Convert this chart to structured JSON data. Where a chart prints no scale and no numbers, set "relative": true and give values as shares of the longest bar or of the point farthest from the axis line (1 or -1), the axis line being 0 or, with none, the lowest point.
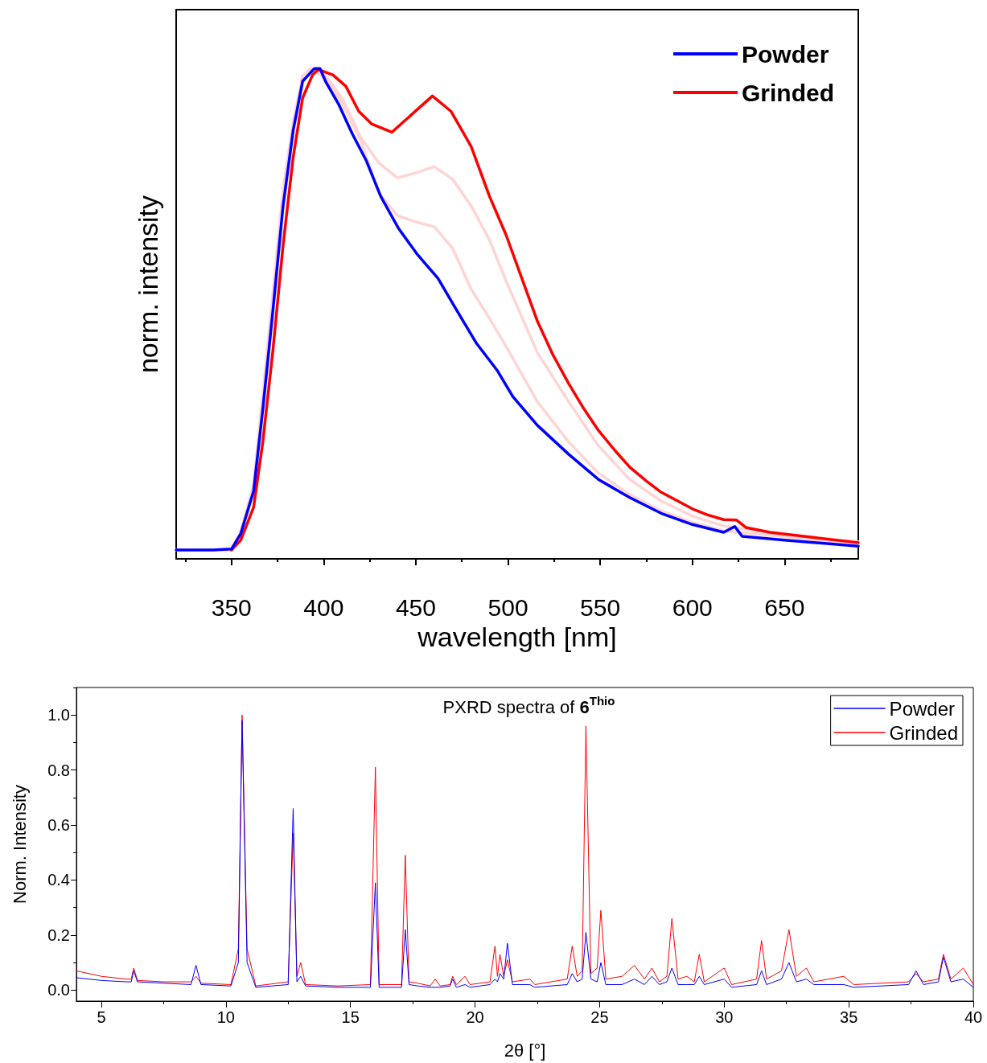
{
  "chart_data": [
    {
      "type": "line",
      "xlabel": "wavelength [nm]",
      "ylabel": "norm. intensity",
      "relative": true,
      "tick_labels": "x",
      "legend": "top right",
      "marker": "none",
      "line_style": "solid",
      "xlim": [
        320,
        690
      ],
      "xticks": [
        350,
        400,
        450,
        500,
        550,
        600,
        650
      ],
      "series": [
        {
          "name": "Powder",
          "color": "#0000ff",
          "x": [
            320,
            340,
            350,
            355,
            362,
            367,
            372.5,
            378,
            383.5,
            388.6,
            395,
            398,
            401,
            408,
            415.5,
            423,
            431,
            440.6,
            451,
            462,
            472.5,
            483,
            494,
            502.6,
            516,
            533,
            549,
            566,
            583,
            600,
            617,
            623,
            627,
            650,
            690
          ],
          "values": [
            0.018,
            0.018,
            0.02,
            0.051,
            0.138,
            0.305,
            0.507,
            0.72,
            0.874,
            0.974,
            1.0,
            1.0,
            0.974,
            0.928,
            0.867,
            0.813,
            0.739,
            0.674,
            0.62,
            0.572,
            0.505,
            0.439,
            0.385,
            0.331,
            0.272,
            0.213,
            0.162,
            0.125,
            0.093,
            0.07,
            0.054,
            0.066,
            0.046,
            0.038,
            0.026
          ]
        },
        {
          "name": "Grinded",
          "color": "#ff0000",
          "x": [
            350,
            355,
            362,
            367,
            372.5,
            378,
            383.5,
            388.6,
            394,
            397,
            405,
            412,
            419,
            426,
            437,
            448,
            459,
            469,
            480,
            490,
            499,
            507.5,
            516,
            524.5,
            533,
            541,
            549,
            558,
            566,
            575,
            583,
            592,
            600,
            608,
            617,
            624,
            629,
            642,
            667,
            690
          ],
          "values": [
            0.018,
            0.038,
            0.105,
            0.238,
            0.426,
            0.64,
            0.82,
            0.94,
            0.987,
            0.998,
            0.987,
            0.964,
            0.913,
            0.887,
            0.87,
            0.907,
            0.944,
            0.913,
            0.841,
            0.739,
            0.66,
            0.572,
            0.484,
            0.415,
            0.357,
            0.307,
            0.262,
            0.221,
            0.187,
            0.159,
            0.136,
            0.118,
            0.102,
            0.09,
            0.08,
            0.079,
            0.064,
            0.054,
            0.043,
            0.033
          ]
        },
        {
          "color": "#ffd4d4",
          "x": [
            320,
            350,
            355,
            362,
            367,
            372.5,
            378,
            383.5,
            388.6,
            393,
            401,
            410,
            420,
            430,
            440,
            450,
            460,
            470,
            480,
            490,
            499,
            516,
            533,
            549,
            566,
            583,
            600,
            617,
            650,
            690
          ],
          "values": [
            0.018,
            0.018,
            0.055,
            0.15,
            0.33,
            0.54,
            0.75,
            0.89,
            0.985,
            1.0,
            0.985,
            0.94,
            0.86,
            0.807,
            0.777,
            0.787,
            0.8,
            0.774,
            0.72,
            0.65,
            0.566,
            0.42,
            0.32,
            0.231,
            0.162,
            0.118,
            0.087,
            0.067,
            0.049,
            0.035
          ]
        },
        {
          "color": "#ffd4d4",
          "x": [
            320,
            350,
            355,
            362,
            367,
            372.5,
            378,
            383.5,
            388.6,
            393,
            401,
            410,
            420,
            430,
            440,
            450,
            460,
            470,
            480,
            490,
            499,
            516,
            533,
            549,
            566,
            583,
            600,
            617,
            650,
            690
          ],
          "values": [
            0.018,
            0.018,
            0.055,
            0.15,
            0.33,
            0.54,
            0.75,
            0.89,
            0.985,
            1.0,
            0.98,
            0.93,
            0.854,
            0.746,
            0.7,
            0.687,
            0.677,
            0.633,
            0.55,
            0.49,
            0.433,
            0.32,
            0.238,
            0.175,
            0.131,
            0.098,
            0.074,
            0.057,
            0.045,
            0.03
          ]
        }
      ]
    },
    {
      "type": "line",
      "title": "PXRD spectra of 6$^{Thio}$",
      "xlabel": "2θ [°]",
      "ylabel": "Norm. Intensity",
      "legend": "top right",
      "marker": "none",
      "line_style": "solid",
      "xlim": [
        4,
        40
      ],
      "xticks": [
        5,
        10,
        15,
        20,
        25,
        30,
        35,
        40
      ],
      "ylim": [
        -0.04,
        1.1
      ],
      "yticks": [
        {
          "value": 0,
          "label": "0.0"
        },
        {
          "value": 0.2,
          "label": "0.2"
        },
        {
          "value": 0.4,
          "label": "0.4"
        },
        {
          "value": 0.6,
          "label": "0.6"
        },
        {
          "value": 0.8,
          "label": "0.8"
        },
        {
          "value": 1,
          "label": "1.0"
        }
      ],
      "x": [
        4,
        5,
        6,
        6.2,
        6.3,
        6.45,
        7.5,
        8.6,
        8.8,
        9.0,
        10.2,
        10.5,
        10.65,
        10.85,
        11.2,
        12.5,
        12.7,
        12.85,
        13.0,
        13.2,
        14.5,
        15.8,
        16.0,
        16.15,
        17.05,
        17.2,
        17.35,
        17.7,
        18.2,
        18.4,
        18.6,
        19.0,
        19.1,
        19.25,
        19.6,
        19.8,
        20.6,
        20.8,
        20.9,
        21.0,
        21.15,
        21.3,
        21.5,
        22.2,
        22.4,
        23.7,
        23.9,
        24.1,
        24.3,
        24.45,
        24.65,
        24.9,
        25.05,
        25.25,
        25.9,
        26.4,
        26.8,
        27.1,
        27.4,
        27.7,
        27.9,
        28.15,
        28.5,
        28.8,
        29.0,
        29.2,
        30.0,
        30.3,
        31.3,
        31.5,
        31.7,
        32.3,
        32.6,
        32.9,
        33.3,
        33.6,
        34.8,
        35.2,
        37.4,
        37.7,
        38.0,
        38.6,
        38.8,
        39.1,
        39.6,
        40
      ],
      "series": [
        {
          "name": "Powder",
          "color": "#0000ff",
          "values": [
            0.045,
            0.035,
            0.03,
            0.03,
            0.07,
            0.03,
            0.025,
            0.02,
            0.09,
            0.02,
            0.015,
            0.1,
            0.98,
            0.1,
            0.01,
            0.02,
            0.66,
            0.03,
            0.05,
            0.015,
            0.01,
            0.01,
            0.39,
            0.01,
            0.01,
            0.22,
            0.02,
            0.015,
            0.01,
            0.01,
            0.01,
            0.015,
            0.04,
            0.01,
            0.02,
            0.01,
            0.02,
            0.04,
            0.03,
            0.06,
            0.04,
            0.17,
            0.02,
            0.02,
            0.01,
            0.02,
            0.06,
            0.03,
            0.04,
            0.21,
            0.04,
            0.03,
            0.1,
            0.02,
            0.02,
            0.04,
            0.02,
            0.05,
            0.02,
            0.03,
            0.08,
            0.02,
            0.02,
            0.02,
            0.05,
            0.02,
            0.04,
            0.01,
            0.02,
            0.07,
            0.02,
            0.04,
            0.1,
            0.03,
            0.04,
            0.02,
            0.02,
            0.01,
            0.02,
            0.07,
            0.02,
            0.03,
            0.12,
            0.03,
            0.04,
            0.01
          ]
        },
        {
          "name": "Grinded",
          "color": "#ff0000",
          "values": [
            0.07,
            0.05,
            0.04,
            0.04,
            0.08,
            0.035,
            0.03,
            0.03,
            0.05,
            0.025,
            0.02,
            0.15,
            1.0,
            0.15,
            0.015,
            0.03,
            0.57,
            0.05,
            0.1,
            0.02,
            0.015,
            0.02,
            0.81,
            0.02,
            0.02,
            0.49,
            0.03,
            0.025,
            0.015,
            0.04,
            0.015,
            0.02,
            0.05,
            0.02,
            0.05,
            0.02,
            0.03,
            0.16,
            0.05,
            0.13,
            0.05,
            0.11,
            0.03,
            0.04,
            0.02,
            0.04,
            0.16,
            0.05,
            0.07,
            0.96,
            0.06,
            0.08,
            0.29,
            0.04,
            0.05,
            0.09,
            0.04,
            0.08,
            0.03,
            0.05,
            0.26,
            0.04,
            0.05,
            0.03,
            0.13,
            0.03,
            0.08,
            0.02,
            0.04,
            0.18,
            0.04,
            0.07,
            0.22,
            0.05,
            0.08,
            0.03,
            0.05,
            0.02,
            0.03,
            0.06,
            0.03,
            0.04,
            0.13,
            0.04,
            0.08,
            0.02
          ]
        }
      ]
    }
  ]
}
